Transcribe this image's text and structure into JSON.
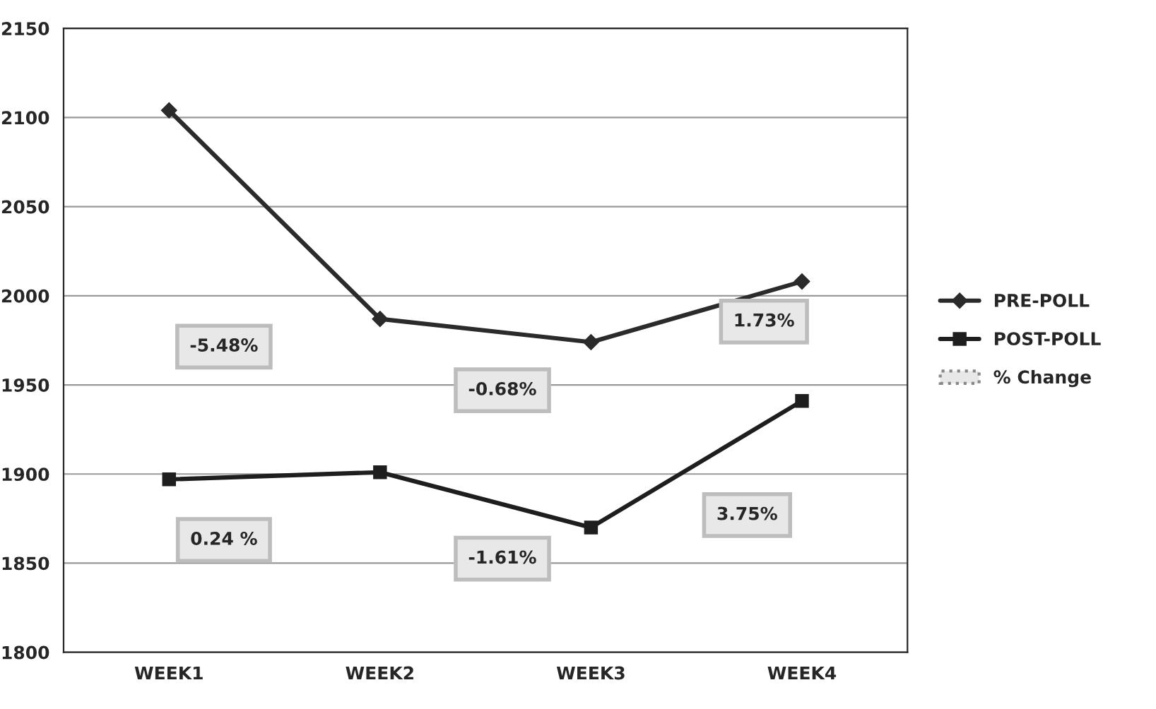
{
  "chart_data": {
    "type": "line",
    "categories": [
      "WEEK1",
      "WEEK2",
      "WEEK3",
      "WEEK4"
    ],
    "series": [
      {
        "name": "PRE-POLL",
        "color": "#2b2b2b",
        "marker": "diamond",
        "values": [
          2104,
          1987,
          1974,
          2008
        ]
      },
      {
        "name": "POST-POLL",
        "color": "#1e1e1e",
        "marker": "square",
        "values": [
          1897,
          1901,
          1870,
          1941
        ]
      }
    ],
    "ylim": [
      1800,
      2150
    ],
    "yticks": [
      1800,
      1850,
      1900,
      1950,
      2000,
      2050,
      2100,
      2150
    ],
    "grid": "y",
    "legend": "right",
    "annotations": [
      "% Change",
      "-5.48%",
      "-0.68%",
      "1.73%",
      "0.24 %",
      "-1.61%",
      "3.75%"
    ]
  }
}
